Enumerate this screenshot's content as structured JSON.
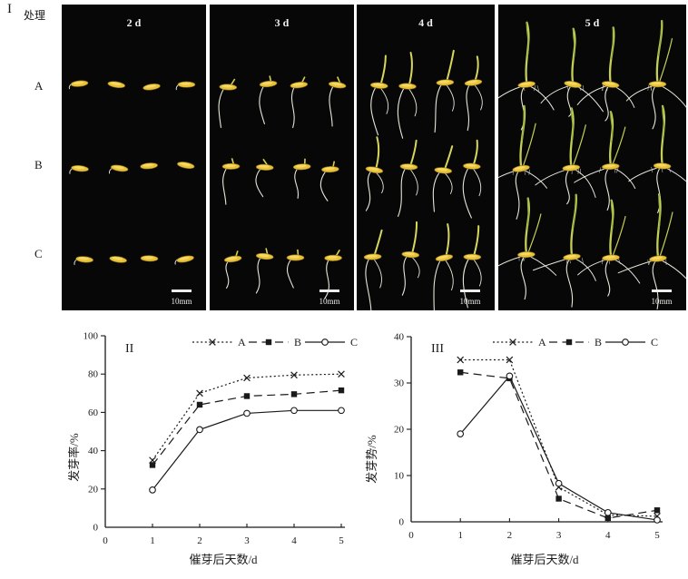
{
  "photo_section": {
    "section_label": "I",
    "treatment_label": "处理",
    "row_labels": [
      "A",
      "B",
      "C"
    ],
    "panels": [
      {
        "day_label": "2 d"
      },
      {
        "day_label": "3 d"
      },
      {
        "day_label": "4 d"
      },
      {
        "day_label": "5 d"
      }
    ],
    "scale_bar_label": "10mm",
    "seeds_per_row": 4
  },
  "chart_data": [
    {
      "type": "line",
      "panel": "II",
      "xlabel": "催芽后天数/d",
      "ylabel": "发芽率/%",
      "xlim": [
        0,
        5
      ],
      "ylim": [
        0,
        100
      ],
      "xticks": [
        0,
        1,
        2,
        3,
        4,
        5
      ],
      "yticks": [
        0,
        20,
        40,
        60,
        80,
        100
      ],
      "x": [
        1,
        2,
        3,
        4,
        5
      ],
      "series": [
        {
          "name": "A",
          "marker": "x",
          "line": "dotted",
          "values": [
            35,
            70,
            78,
            79.5,
            80
          ]
        },
        {
          "name": "B",
          "marker": "filled-square",
          "line": "dashed",
          "values": [
            32.5,
            64,
            68.5,
            69.5,
            71.5
          ]
        },
        {
          "name": "C",
          "marker": "open-circle",
          "line": "solid",
          "values": [
            19.5,
            51,
            59.5,
            61,
            61
          ]
        }
      ],
      "legend_position": "top",
      "grid": false
    },
    {
      "type": "line",
      "panel": "III",
      "xlabel": "催芽后天数/d",
      "ylabel": "发芽势/%",
      "xlim": [
        0,
        5
      ],
      "ylim": [
        0,
        40
      ],
      "xticks": [
        0,
        1,
        2,
        3,
        4,
        5
      ],
      "yticks": [
        0,
        10,
        20,
        30,
        40
      ],
      "x": [
        1,
        2,
        3,
        4,
        5
      ],
      "series": [
        {
          "name": "A",
          "marker": "x",
          "line": "dotted",
          "values": [
            35,
            35,
            7.5,
            1.5,
            1.2
          ]
        },
        {
          "name": "B",
          "marker": "filled-square",
          "line": "dashed",
          "values": [
            32.3,
            31,
            5,
            0.8,
            2.5
          ]
        },
        {
          "name": "C",
          "marker": "open-circle",
          "line": "solid",
          "values": [
            19,
            31.5,
            8.3,
            2,
            0.4
          ]
        }
      ],
      "legend_position": "top",
      "grid": false
    }
  ],
  "colors": {
    "ink": "#1a1a1a",
    "panel_bg": "#070707",
    "panel_text": "#f0f0f0",
    "seed": "#e9c23a",
    "seed_highlight": "#f7dd6a",
    "shoot": "#c6cf55",
    "shoot_dark": "#96b23e",
    "root": "#e6e6da"
  }
}
